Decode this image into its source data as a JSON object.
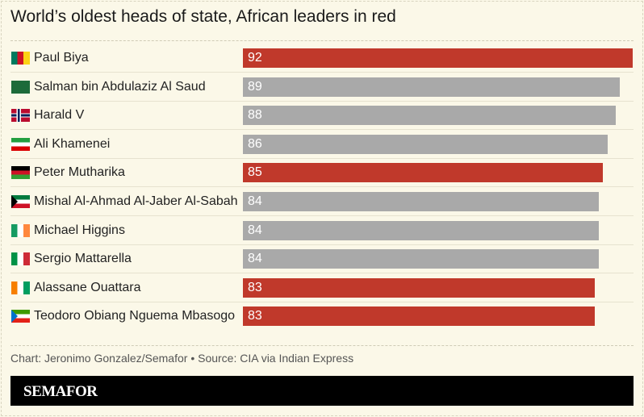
{
  "chart_data": {
    "type": "bar",
    "orientation": "horizontal",
    "title": "World’s oldest heads of state, African leaders in red",
    "categories": [
      "Paul Biya",
      "Salman bin Abdulaziz Al Saud",
      "Harald V",
      "Ali Khamenei",
      "Peter Mutharika",
      "Mishal Al-Ahmad Al-Jaber Al-Sabah",
      "Michael Higgins",
      "Sergio Mattarella",
      "Alassane Ouattara",
      "Teodoro Obiang Nguema Mbasogo"
    ],
    "values": [
      92,
      89,
      88,
      86,
      85,
      84,
      84,
      84,
      83,
      83
    ],
    "african": [
      true,
      false,
      false,
      false,
      true,
      false,
      false,
      false,
      true,
      true
    ],
    "flags": [
      "cameroon-flag-icon",
      "saudi-arabia-flag-icon",
      "norway-flag-icon",
      "iran-flag-icon",
      "malawi-flag-icon",
      "kuwait-flag-icon",
      "ireland-flag-icon",
      "italy-flag-icon",
      "ivory-coast-flag-icon",
      "equatorial-guinea-flag-icon"
    ],
    "xlim": [
      0,
      92
    ],
    "colors": {
      "african": "#c0392b",
      "other": "#a9a9a9"
    },
    "grid": false,
    "data_labels": "inside-left"
  },
  "footer": {
    "credit": "Chart: Jeronimo Gonzalez/Semafor • Source: CIA via Indian Express",
    "logo": "SEMAFOR"
  }
}
